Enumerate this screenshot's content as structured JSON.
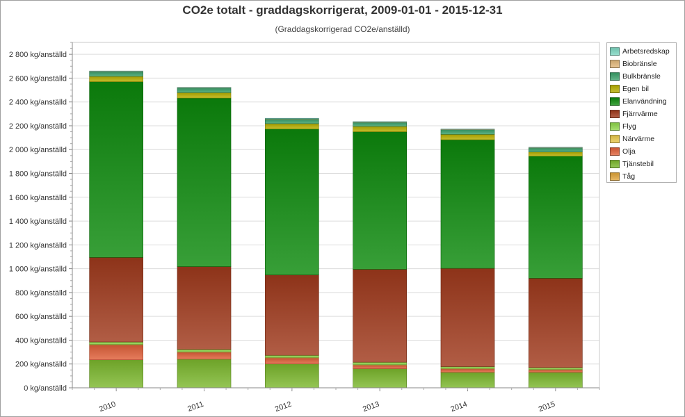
{
  "chart_data": {
    "type": "bar",
    "stacked": true,
    "title": "CO2e totalt - graddagskorrigerat, 2009-01-01 - 2015-12-31",
    "subtitle": "(Graddagskorrigerad CO2e/anställd)",
    "xlabel": "",
    "ylabel": "",
    "ylim": [
      0,
      2900
    ],
    "y_tick_values": [
      0,
      200,
      400,
      600,
      800,
      1000,
      1200,
      1400,
      1600,
      1800,
      2000,
      2200,
      2400,
      2600,
      2800
    ],
    "y_tick_labels": [
      "0 kg/anställd",
      "200 kg/anställd",
      "400 kg/anställd",
      "600 kg/anställd",
      "800 kg/anställd",
      "1 000 kg/anställd",
      "1 200 kg/anställd",
      "1 400 kg/anställd",
      "1 600 kg/anställd",
      "1 800 kg/anställd",
      "2 000 kg/anställd",
      "2 200 kg/anställd",
      "2 400 kg/anställd",
      "2 600 kg/anställd",
      "2 800 kg/anställd"
    ],
    "grid": true,
    "legend_position": "right",
    "categories": [
      "2010",
      "2011",
      "2012",
      "2013",
      "2014",
      "2015"
    ],
    "series": [
      {
        "name": "Tjänstebil",
        "color": "#7cb82e",
        "values": [
          235,
          240,
          200,
          160,
          130,
          130
        ]
      },
      {
        "name": "Tåg",
        "color": "#e0a43a",
        "values": [
          0,
          0,
          0,
          0,
          0,
          0
        ]
      },
      {
        "name": "Olja",
        "color": "#e0603a",
        "values": [
          125,
          58,
          50,
          30,
          28,
          20
        ]
      },
      {
        "name": "Närvärme",
        "color": "#e8c84a",
        "values": [
          5,
          5,
          5,
          5,
          5,
          5
        ]
      },
      {
        "name": "Flyg",
        "color": "#8ed64a",
        "values": [
          20,
          20,
          18,
          20,
          15,
          15
        ]
      },
      {
        "name": "Fjärrvärme",
        "color": "#a03a1c",
        "values": [
          710,
          695,
          675,
          780,
          825,
          750
        ]
      },
      {
        "name": "Elanvändning",
        "color": "#0c8a0c",
        "values": [
          1475,
          1415,
          1225,
          1155,
          1080,
          1025
        ]
      },
      {
        "name": "Egen bil",
        "color": "#b8b000",
        "values": [
          45,
          45,
          45,
          45,
          45,
          35
        ]
      },
      {
        "name": "Bulkbränsle",
        "color": "#3aa06a",
        "values": [
          40,
          40,
          40,
          35,
          40,
          35
        ]
      },
      {
        "name": "Biobränsle",
        "color": "#e2b87a",
        "values": [
          2,
          2,
          2,
          2,
          2,
          2
        ]
      },
      {
        "name": "Arbetsredskap",
        "color": "#7cd6c0",
        "values": [
          3,
          3,
          3,
          3,
          3,
          3
        ]
      }
    ],
    "legend": [
      {
        "name": "Arbetsredskap",
        "color": "#7cd6c0"
      },
      {
        "name": "Biobränsle",
        "color": "#e2b87a"
      },
      {
        "name": "Bulkbränsle",
        "color": "#3aa06a"
      },
      {
        "name": "Egen bil",
        "color": "#b8b000"
      },
      {
        "name": "Elanvändning",
        "color": "#0c8a0c"
      },
      {
        "name": "Fjärrvärme",
        "color": "#a03a1c"
      },
      {
        "name": "Flyg",
        "color": "#8ed64a"
      },
      {
        "name": "Närvärme",
        "color": "#e8c84a"
      },
      {
        "name": "Olja",
        "color": "#e0603a"
      },
      {
        "name": "Tjänstebil",
        "color": "#7cb82e"
      },
      {
        "name": "Tåg",
        "color": "#e0a43a"
      }
    ]
  }
}
